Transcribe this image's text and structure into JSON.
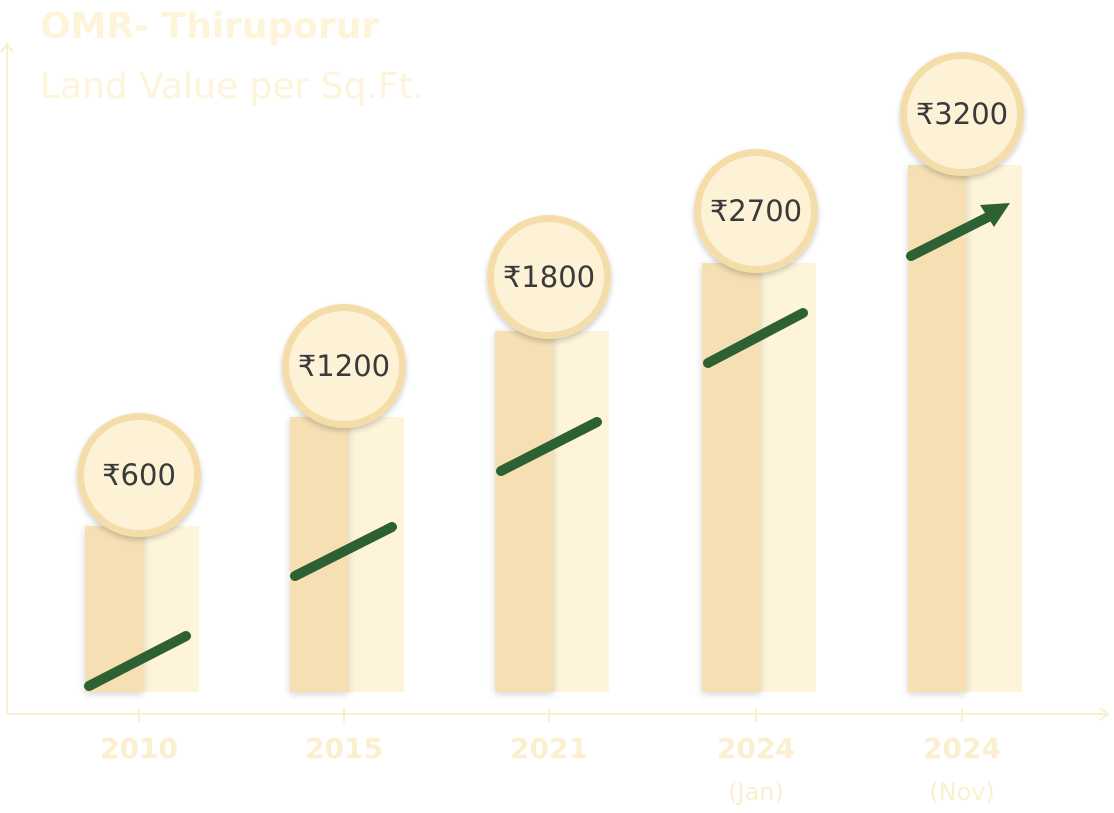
{
  "chart_data": {
    "type": "bar",
    "title": "OMR- Thiruporur",
    "subtitle": "Land Value per Sq.Ft.",
    "categories": [
      {
        "label": "2010",
        "sub": ""
      },
      {
        "label": "2015",
        "sub": ""
      },
      {
        "label": "2021",
        "sub": ""
      },
      {
        "label": "2024",
        "sub": "(Jan)"
      },
      {
        "label": "2024",
        "sub": "(Nov)"
      }
    ],
    "values": [
      600,
      1200,
      1800,
      2700,
      3200
    ],
    "value_labels": [
      "₹600",
      "₹1200",
      "₹1800",
      "₹2700",
      "₹3200"
    ],
    "ylim": [
      0,
      3200
    ],
    "grid": false,
    "trend_arrow": true,
    "colors": {
      "bar_dark": "#F5DFB3",
      "bar_light": "#FDF4D9",
      "circle_fill": "#FDF2D5",
      "circle_ring": "#F5DDAA",
      "trend": "#2D6133",
      "axis": "#FBEFCF",
      "label_text": "#3A3A3A"
    }
  }
}
